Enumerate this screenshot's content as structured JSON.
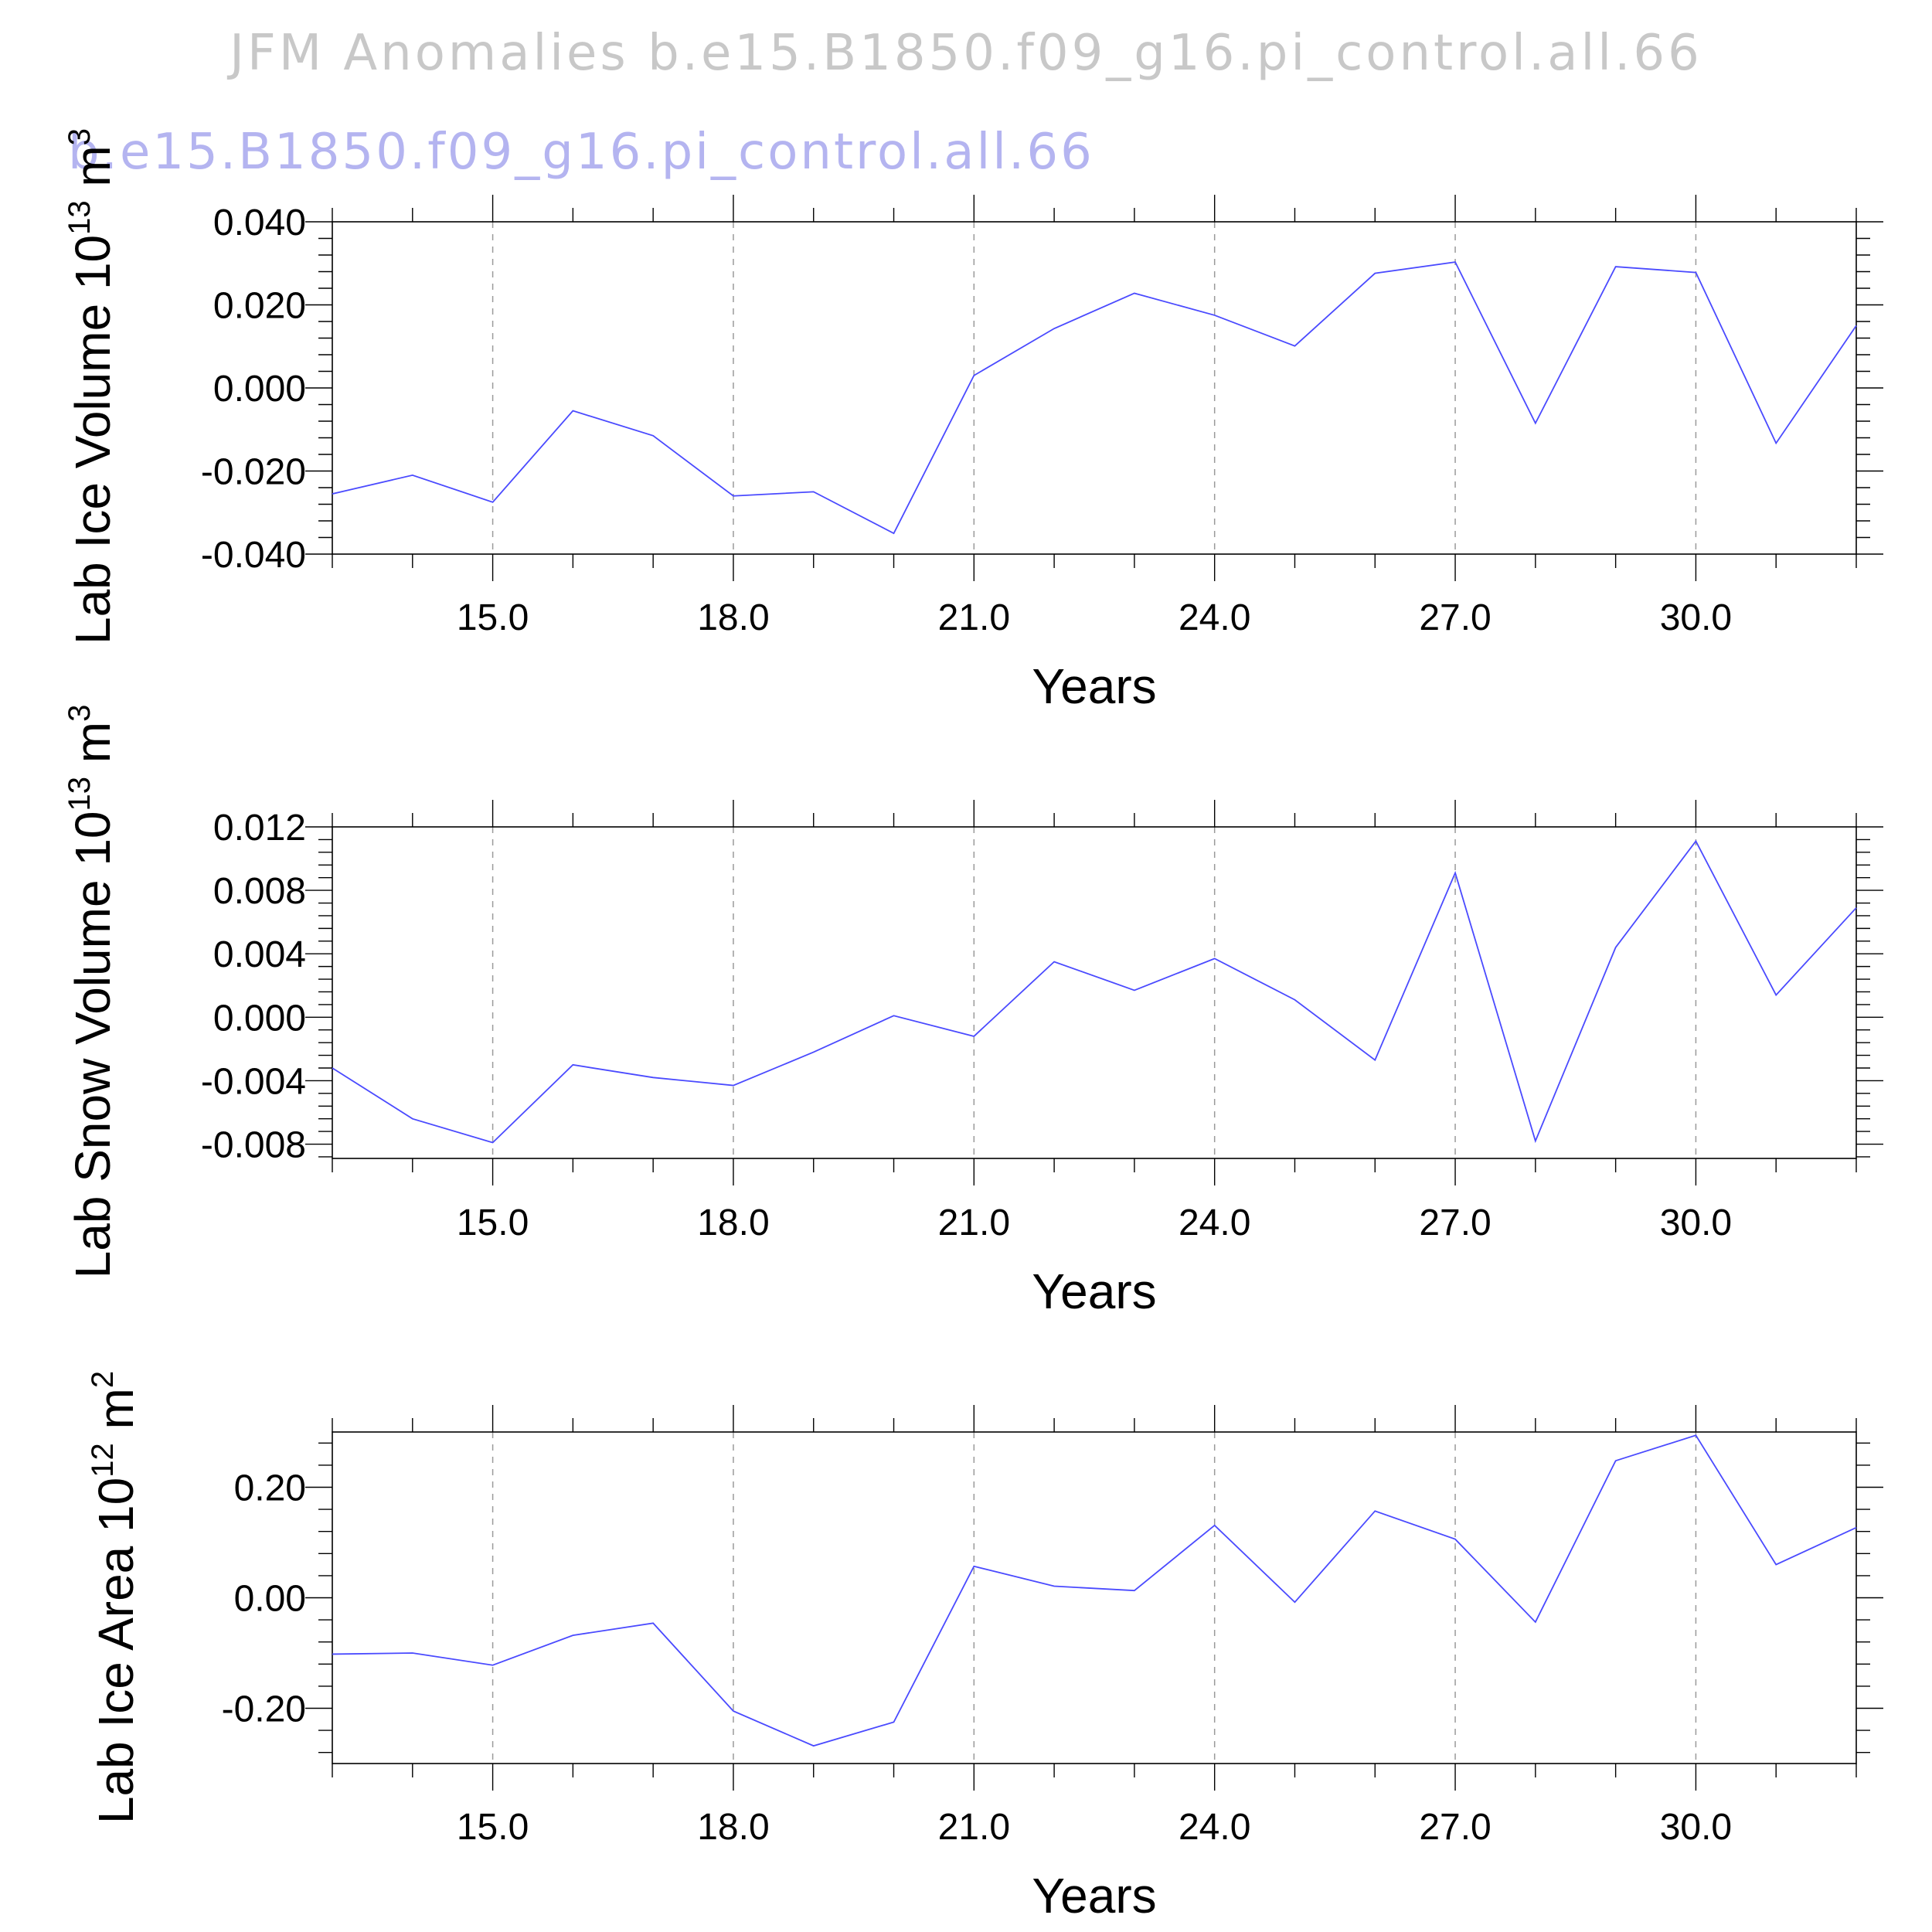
{
  "figure": {
    "title": "JFM Anomalies b.e15.B1850.f09_g16.pi_control.all.66",
    "subtitle": "b.e15.B1850.f09_g16.pi_control.all.66",
    "title_color": "#c8c8c8",
    "subtitle_color": "#b4b4f0",
    "line_color": "#4a4aff"
  },
  "chart_data": [
    {
      "type": "line",
      "ylabel": "Lab Ice Volume",
      "yunit": "10",
      "yunit_exp": "13",
      "yunit_tail": " m",
      "yunit_tail_exp": "3",
      "xlabel": "Years",
      "xlim": [
        13,
        32
      ],
      "ylim": [
        -0.04,
        0.04
      ],
      "xticks": [
        15,
        18,
        21,
        24,
        27,
        30
      ],
      "xtick_labels": [
        "15.0",
        "18.0",
        "21.0",
        "24.0",
        "27.0",
        "30.0"
      ],
      "yticks": [
        -0.04,
        -0.02,
        0.0,
        0.02,
        0.04
      ],
      "ytick_labels": [
        "-0.040",
        "-0.020",
        "0.000",
        "0.020",
        "0.040"
      ],
      "grid": "vertical dashed at major x ticks",
      "x": [
        13,
        14,
        15,
        16,
        17,
        18,
        19,
        20,
        21,
        22,
        23,
        24,
        25,
        26,
        27,
        28,
        29,
        30,
        31,
        32
      ],
      "series": [
        {
          "values": [
            -0.0255,
            -0.021,
            -0.0275,
            -0.0055,
            -0.0115,
            -0.026,
            -0.025,
            -0.035,
            0.003,
            0.0143,
            0.0228,
            0.0175,
            0.0101,
            0.0276,
            0.0303,
            -0.0085,
            0.0292,
            0.0278,
            -0.0133,
            0.015
          ]
        }
      ]
    },
    {
      "type": "line",
      "ylabel": "Lab Snow Volume",
      "yunit": "10",
      "yunit_exp": "13",
      "yunit_tail": " m",
      "yunit_tail_exp": "3",
      "xlabel": "Years",
      "xlim": [
        13,
        32
      ],
      "ylim": [
        -0.0089,
        0.012
      ],
      "xticks": [
        15,
        18,
        21,
        24,
        27,
        30
      ],
      "xtick_labels": [
        "15.0",
        "18.0",
        "21.0",
        "24.0",
        "27.0",
        "30.0"
      ],
      "yticks": [
        -0.008,
        -0.004,
        0.0,
        0.004,
        0.008,
        0.012
      ],
      "ytick_labels": [
        "-0.008",
        "-0.004",
        "0.000",
        "0.004",
        "0.008",
        "0.012"
      ],
      "grid": "vertical dashed at major x ticks",
      "x": [
        13,
        14,
        15,
        16,
        17,
        18,
        19,
        20,
        21,
        22,
        23,
        24,
        25,
        26,
        27,
        28,
        29,
        30,
        31,
        32
      ],
      "series": [
        {
          "values": [
            -0.0032,
            -0.0064,
            -0.0079,
            -0.003,
            -0.0038,
            -0.0043,
            -0.0022,
            0.0001,
            -0.0012,
            0.0035,
            0.0017,
            0.0037,
            0.0011,
            -0.0027,
            0.0091,
            -0.0078,
            0.0044,
            0.0111,
            0.0014,
            0.0069
          ]
        }
      ]
    },
    {
      "type": "line",
      "ylabel": "Lab Ice Area",
      "yunit": "10",
      "yunit_exp": "12",
      "yunit_tail": " m",
      "yunit_tail_exp": "2",
      "xlabel": "Years",
      "xlim": [
        13,
        32
      ],
      "ylim": [
        -0.3,
        0.3
      ],
      "xticks": [
        15,
        18,
        21,
        24,
        27,
        30
      ],
      "xtick_labels": [
        "15.0",
        "18.0",
        "21.0",
        "24.0",
        "27.0",
        "30.0"
      ],
      "yticks": [
        -0.2,
        0.0,
        0.2
      ],
      "ytick_labels": [
        "-0.20",
        "0.00",
        "0.20"
      ],
      "grid": "vertical dashed at major x ticks",
      "x": [
        13,
        14,
        15,
        16,
        17,
        18,
        19,
        20,
        21,
        22,
        23,
        24,
        25,
        26,
        27,
        28,
        29,
        30,
        31,
        32
      ],
      "series": [
        {
          "values": [
            -0.102,
            -0.1,
            -0.122,
            -0.068,
            -0.046,
            -0.205,
            -0.268,
            -0.225,
            0.057,
            0.021,
            0.013,
            0.131,
            -0.008,
            0.157,
            0.106,
            -0.044,
            0.248,
            0.294,
            0.06,
            0.127
          ]
        }
      ]
    }
  ]
}
